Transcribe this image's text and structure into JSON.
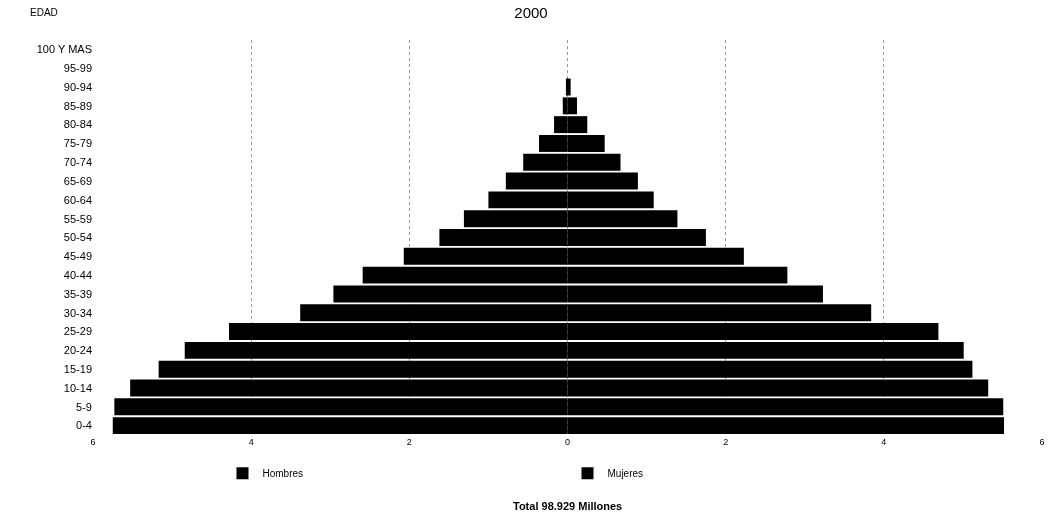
{
  "chart_data": {
    "type": "bar",
    "orientation": "horizontal",
    "title": "2000",
    "ylabel": "EDAD",
    "categories": [
      "100 Y MAS",
      "95-99",
      "90-94",
      "85-89",
      "80-84",
      "75-79",
      "70-74",
      "65-69",
      "60-64",
      "55-59",
      "50-54",
      "45-49",
      "40-44",
      "35-39",
      "30-34",
      "25-29",
      "20-24",
      "15-19",
      "10-14",
      "5-9",
      "0-4"
    ],
    "series": [
      {
        "name": "Hombres",
        "color": "#000000",
        "values": [
          0,
          0,
          -0.02,
          -0.06,
          -0.17,
          -0.36,
          -0.56,
          -0.78,
          -1.0,
          -1.31,
          -1.62,
          -2.07,
          -2.59,
          -2.96,
          -3.38,
          -4.28,
          -4.84,
          -5.17,
          -5.53,
          -5.73,
          -5.75
        ]
      },
      {
        "name": "Mujeres",
        "color": "#000000",
        "values": [
          0,
          0,
          0.04,
          0.12,
          0.25,
          0.47,
          0.67,
          0.89,
          1.09,
          1.39,
          1.75,
          2.23,
          2.78,
          3.23,
          3.84,
          4.69,
          5.01,
          5.12,
          5.32,
          5.51,
          5.52
        ]
      }
    ],
    "xlim": [
      -6,
      6
    ],
    "xticks": [
      {
        "value": -6,
        "label": "6"
      },
      {
        "value": -4,
        "label": "4"
      },
      {
        "value": -2,
        "label": "2"
      },
      0,
      2,
      4,
      6
    ],
    "grid": "x",
    "legend": "bottom",
    "stacked": true,
    "annotations": [
      "Total 98.929 Millones"
    ]
  }
}
